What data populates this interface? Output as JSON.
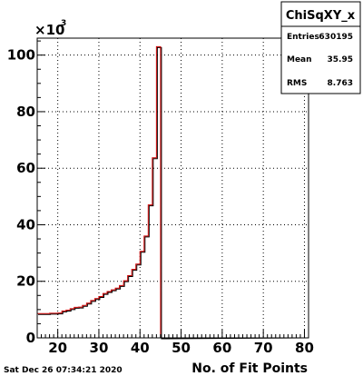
{
  "chart_data": {
    "type": "histogram",
    "title": "",
    "xlabel": "No. of Fit Points",
    "ylabel": "",
    "y_multiplier_label": "×10",
    "y_multiplier_exponent": "3",
    "xlim": [
      15,
      81
    ],
    "ylim": [
      0,
      106
    ],
    "bin_width": 1,
    "grid": true,
    "x_ticks": [
      20,
      30,
      40,
      50,
      60,
      70,
      80
    ],
    "y_ticks": [
      0,
      20,
      40,
      60,
      80,
      100
    ],
    "x_tick_labels": [
      "20",
      "30",
      "40",
      "50",
      "60",
      "70",
      "80"
    ],
    "y_tick_labels": [
      "0",
      "20",
      "40",
      "60",
      "80",
      "100"
    ],
    "bins": [
      {
        "x0": 15,
        "y": 8.6
      },
      {
        "x0": 16,
        "y": 8.6
      },
      {
        "x0": 17,
        "y": 8.6
      },
      {
        "x0": 18,
        "y": 8.7
      },
      {
        "x0": 19,
        "y": 8.7
      },
      {
        "x0": 20,
        "y": 8.8
      },
      {
        "x0": 21,
        "y": 9.5
      },
      {
        "x0": 22,
        "y": 9.8
      },
      {
        "x0": 23,
        "y": 10.3
      },
      {
        "x0": 24,
        "y": 10.8
      },
      {
        "x0": 25,
        "y": 10.9
      },
      {
        "x0": 26,
        "y": 11.5
      },
      {
        "x0": 27,
        "y": 12.3
      },
      {
        "x0": 28,
        "y": 13.2
      },
      {
        "x0": 29,
        "y": 13.9
      },
      {
        "x0": 30,
        "y": 14.6
      },
      {
        "x0": 31,
        "y": 15.7
      },
      {
        "x0": 32,
        "y": 16.4
      },
      {
        "x0": 33,
        "y": 17.0
      },
      {
        "x0": 34,
        "y": 17.6
      },
      {
        "x0": 35,
        "y": 18.5
      },
      {
        "x0": 36,
        "y": 20.2
      },
      {
        "x0": 37,
        "y": 22.0
      },
      {
        "x0": 38,
        "y": 24.2
      },
      {
        "x0": 39,
        "y": 26.1
      },
      {
        "x0": 40,
        "y": 30.6
      },
      {
        "x0": 41,
        "y": 36.0
      },
      {
        "x0": 42,
        "y": 47.0
      },
      {
        "x0": 43,
        "y": 63.7
      },
      {
        "x0": 44,
        "y": 103.0
      },
      {
        "x0": 45,
        "y": 0.0
      }
    ],
    "series": [
      {
        "color": "#cc0000"
      },
      {
        "color": "#000000"
      }
    ],
    "stats_box": {
      "title": "ChiSqXY_x",
      "rows": [
        {
          "label": "Entries",
          "value": "630195"
        },
        {
          "label": "Mean",
          "value": "35.95"
        },
        {
          "label": "RMS",
          "value": "8.763"
        }
      ]
    },
    "timestamp": "Sat Dec 26 07:34:21 2020"
  }
}
